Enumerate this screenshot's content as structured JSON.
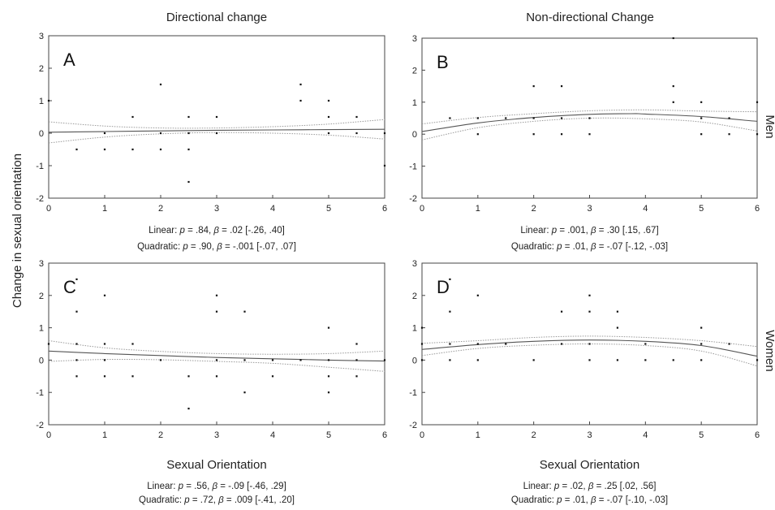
{
  "figure": {
    "col_titles": [
      "Directional change",
      "Non-directional Change"
    ],
    "row_labels": [
      "Men",
      "Women"
    ],
    "ylabel": "Change in sexual orientation"
  },
  "chart_data": [
    {
      "type": "scatter",
      "panel": "A",
      "xlabel": "",
      "xlim": [
        0,
        6
      ],
      "ylim": [
        -2,
        3
      ],
      "xticks": [
        0,
        1,
        2,
        3,
        4,
        5,
        6
      ],
      "yticks": [
        -2,
        -1,
        0,
        1,
        2,
        3
      ],
      "points": [
        [
          0,
          1
        ],
        [
          0.5,
          -0.5
        ],
        [
          1,
          0
        ],
        [
          1,
          -0.5
        ],
        [
          1.5,
          0.5
        ],
        [
          1.5,
          -0.5
        ],
        [
          2,
          1.5
        ],
        [
          2,
          0
        ],
        [
          2,
          -0.5
        ],
        [
          2.5,
          0.5
        ],
        [
          2.5,
          0
        ],
        [
          2.5,
          -0.5
        ],
        [
          2.5,
          -1.5
        ],
        [
          3,
          0.5
        ],
        [
          3,
          0
        ],
        [
          4.5,
          1.5
        ],
        [
          4.5,
          1
        ],
        [
          5,
          1
        ],
        [
          5,
          0.5
        ],
        [
          5,
          0
        ],
        [
          5.5,
          0.5
        ],
        [
          5.5,
          0
        ],
        [
          6,
          0
        ],
        [
          6,
          -1
        ]
      ],
      "fit": [
        [
          0,
          0.03
        ],
        [
          1,
          0.05
        ],
        [
          2,
          0.07
        ],
        [
          3,
          0.09
        ],
        [
          4,
          0.1
        ],
        [
          5,
          0.11
        ],
        [
          6,
          0.12
        ]
      ],
      "ci_upper": [
        [
          0,
          0.35
        ],
        [
          1,
          0.22
        ],
        [
          2,
          0.16
        ],
        [
          3,
          0.16
        ],
        [
          4,
          0.2
        ],
        [
          5,
          0.28
        ],
        [
          6,
          0.42
        ]
      ],
      "ci_lower": [
        [
          0,
          -0.3
        ],
        [
          1,
          -0.12
        ],
        [
          2,
          -0.02
        ],
        [
          3,
          0.02
        ],
        [
          4,
          0.0
        ],
        [
          5,
          -0.06
        ],
        [
          6,
          -0.18
        ]
      ],
      "stats": [
        {
          "name": "Linear",
          "p": "= .84",
          "beta": "= .02 [-.26, .40]"
        },
        {
          "name": "Quadratic",
          "p": "= .90",
          "beta": "= -.001 [-.07, .07]"
        }
      ]
    },
    {
      "type": "scatter",
      "panel": "B",
      "xlabel": "",
      "xlim": [
        0,
        6
      ],
      "ylim": [
        -2,
        3
      ],
      "xticks": [
        0,
        1,
        2,
        3,
        4,
        5,
        6
      ],
      "yticks": [
        -2,
        -1,
        0,
        1,
        2,
        3
      ],
      "points": [
        [
          0.5,
          0.5
        ],
        [
          1,
          0.5
        ],
        [
          1,
          0
        ],
        [
          1.5,
          0.5
        ],
        [
          2,
          1.5
        ],
        [
          2,
          0.5
        ],
        [
          2,
          0
        ],
        [
          2.5,
          1.5
        ],
        [
          2.5,
          0.5
        ],
        [
          2.5,
          0
        ],
        [
          3,
          0.5
        ],
        [
          3,
          0
        ],
        [
          4.5,
          3
        ],
        [
          4.5,
          1.5
        ],
        [
          4.5,
          1
        ],
        [
          5,
          1
        ],
        [
          5,
          0.5
        ],
        [
          5,
          0
        ],
        [
          5.5,
          0.5
        ],
        [
          5.5,
          0
        ],
        [
          6,
          1
        ],
        [
          6,
          0
        ]
      ],
      "fit": [
        [
          0,
          0.08
        ],
        [
          1,
          0.35
        ],
        [
          2,
          0.52
        ],
        [
          3,
          0.62
        ],
        [
          3.75,
          0.64
        ],
        [
          4,
          0.63
        ],
        [
          5,
          0.55
        ],
        [
          6,
          0.4
        ]
      ],
      "ci_upper": [
        [
          0,
          0.32
        ],
        [
          1,
          0.52
        ],
        [
          2,
          0.64
        ],
        [
          3,
          0.73
        ],
        [
          4,
          0.76
        ],
        [
          5,
          0.72
        ],
        [
          6,
          0.7
        ]
      ],
      "ci_lower": [
        [
          0,
          -0.18
        ],
        [
          1,
          0.2
        ],
        [
          2,
          0.4
        ],
        [
          3,
          0.5
        ],
        [
          4,
          0.48
        ],
        [
          5,
          0.38
        ],
        [
          6,
          0.1
        ]
      ],
      "stats": [
        {
          "name": "Linear",
          "p": "= .001",
          "beta": "= .30 [.15, .67]"
        },
        {
          "name": "Quadratic",
          "p": "= .01",
          "beta": "= -.07 [-.12, -.03]"
        }
      ]
    },
    {
      "type": "scatter",
      "panel": "C",
      "xlabel": "Sexual Orientation",
      "xlim": [
        0,
        6
      ],
      "ylim": [
        -2,
        3
      ],
      "xticks": [
        0,
        1,
        2,
        3,
        4,
        5,
        6
      ],
      "yticks": [
        -2,
        -1,
        0,
        1,
        2,
        3
      ],
      "points": [
        [
          0,
          0.5
        ],
        [
          0.5,
          2.5
        ],
        [
          0.5,
          1.5
        ],
        [
          0.5,
          0.5
        ],
        [
          0.5,
          0
        ],
        [
          0.5,
          -0.5
        ],
        [
          1,
          2
        ],
        [
          1,
          0.5
        ],
        [
          1,
          0
        ],
        [
          1,
          -0.5
        ],
        [
          1.5,
          0.5
        ],
        [
          1.5,
          -0.5
        ],
        [
          2,
          0
        ],
        [
          2.5,
          -0.5
        ],
        [
          2.5,
          -1.5
        ],
        [
          3,
          2
        ],
        [
          3,
          1.5
        ],
        [
          3,
          0
        ],
        [
          3,
          -0.5
        ],
        [
          3.5,
          1.5
        ],
        [
          3.5,
          0
        ],
        [
          3.5,
          -1
        ],
        [
          4,
          0
        ],
        [
          4,
          -0.5
        ],
        [
          4.5,
          0
        ],
        [
          5,
          1
        ],
        [
          5,
          0
        ],
        [
          5,
          -0.5
        ],
        [
          5,
          -1
        ],
        [
          5.5,
          0.5
        ],
        [
          5.5,
          0
        ],
        [
          5.5,
          -0.5
        ],
        [
          6,
          0
        ]
      ],
      "fit": [
        [
          0,
          0.28
        ],
        [
          1,
          0.2
        ],
        [
          2,
          0.14
        ],
        [
          3,
          0.08
        ],
        [
          4,
          0.04
        ],
        [
          5,
          0.0
        ],
        [
          6,
          -0.03
        ]
      ],
      "ci_upper": [
        [
          0,
          0.6
        ],
        [
          1,
          0.38
        ],
        [
          2,
          0.27
        ],
        [
          3,
          0.2
        ],
        [
          4,
          0.18
        ],
        [
          5,
          0.2
        ],
        [
          6,
          0.28
        ]
      ],
      "ci_lower": [
        [
          0,
          -0.04
        ],
        [
          1,
          0.02
        ],
        [
          2,
          0.01
        ],
        [
          3,
          -0.04
        ],
        [
          4,
          -0.1
        ],
        [
          5,
          -0.22
        ],
        [
          6,
          -0.35
        ]
      ],
      "stats": [
        {
          "name": "Linear",
          "p": "= .56",
          "beta": "= -.09 [-.46, .29]"
        },
        {
          "name": "Quadratic",
          "p": "= .72",
          "beta": "= .009 [-.41, .20]"
        }
      ]
    },
    {
      "type": "scatter",
      "panel": "D",
      "xlabel": "Sexual Orientation",
      "xlim": [
        0,
        6
      ],
      "ylim": [
        -2,
        3
      ],
      "xticks": [
        0,
        1,
        2,
        3,
        4,
        5,
        6
      ],
      "yticks": [
        -2,
        -1,
        0,
        1,
        2,
        3
      ],
      "points": [
        [
          0,
          1
        ],
        [
          0,
          0.5
        ],
        [
          0,
          0
        ],
        [
          0.5,
          2.5
        ],
        [
          0.5,
          1.5
        ],
        [
          0.5,
          0.5
        ],
        [
          0.5,
          0
        ],
        [
          1,
          2
        ],
        [
          1,
          0.5
        ],
        [
          1,
          0
        ],
        [
          1.5,
          0.5
        ],
        [
          2,
          0
        ],
        [
          2.5,
          1.5
        ],
        [
          2.5,
          0.5
        ],
        [
          3,
          2
        ],
        [
          3,
          1.5
        ],
        [
          3,
          0.5
        ],
        [
          3,
          0
        ],
        [
          3.5,
          1.5
        ],
        [
          3.5,
          1
        ],
        [
          3.5,
          0
        ],
        [
          4,
          0.5
        ],
        [
          4,
          0
        ],
        [
          4.5,
          0
        ],
        [
          5,
          1
        ],
        [
          5,
          0.5
        ],
        [
          5,
          0
        ],
        [
          5.5,
          0.5
        ],
        [
          6,
          0
        ]
      ],
      "fit": [
        [
          0,
          0.33
        ],
        [
          1,
          0.48
        ],
        [
          2,
          0.58
        ],
        [
          3,
          0.62
        ],
        [
          4,
          0.58
        ],
        [
          5,
          0.45
        ],
        [
          6,
          0.12
        ]
      ],
      "ci_upper": [
        [
          0,
          0.52
        ],
        [
          1,
          0.6
        ],
        [
          2,
          0.7
        ],
        [
          3,
          0.74
        ],
        [
          4,
          0.7
        ],
        [
          5,
          0.6
        ],
        [
          6,
          0.42
        ]
      ],
      "ci_lower": [
        [
          0,
          0.14
        ],
        [
          1,
          0.36
        ],
        [
          2,
          0.46
        ],
        [
          3,
          0.5
        ],
        [
          4,
          0.45
        ],
        [
          5,
          0.28
        ],
        [
          6,
          -0.18
        ]
      ],
      "stats": [
        {
          "name": "Linear",
          "p": "= .02",
          "beta": "= .25 [.02, .56]"
        },
        {
          "name": "Quadratic",
          "p": "= .01",
          "beta": "= -.07 [-.10, -.03]"
        }
      ]
    }
  ]
}
